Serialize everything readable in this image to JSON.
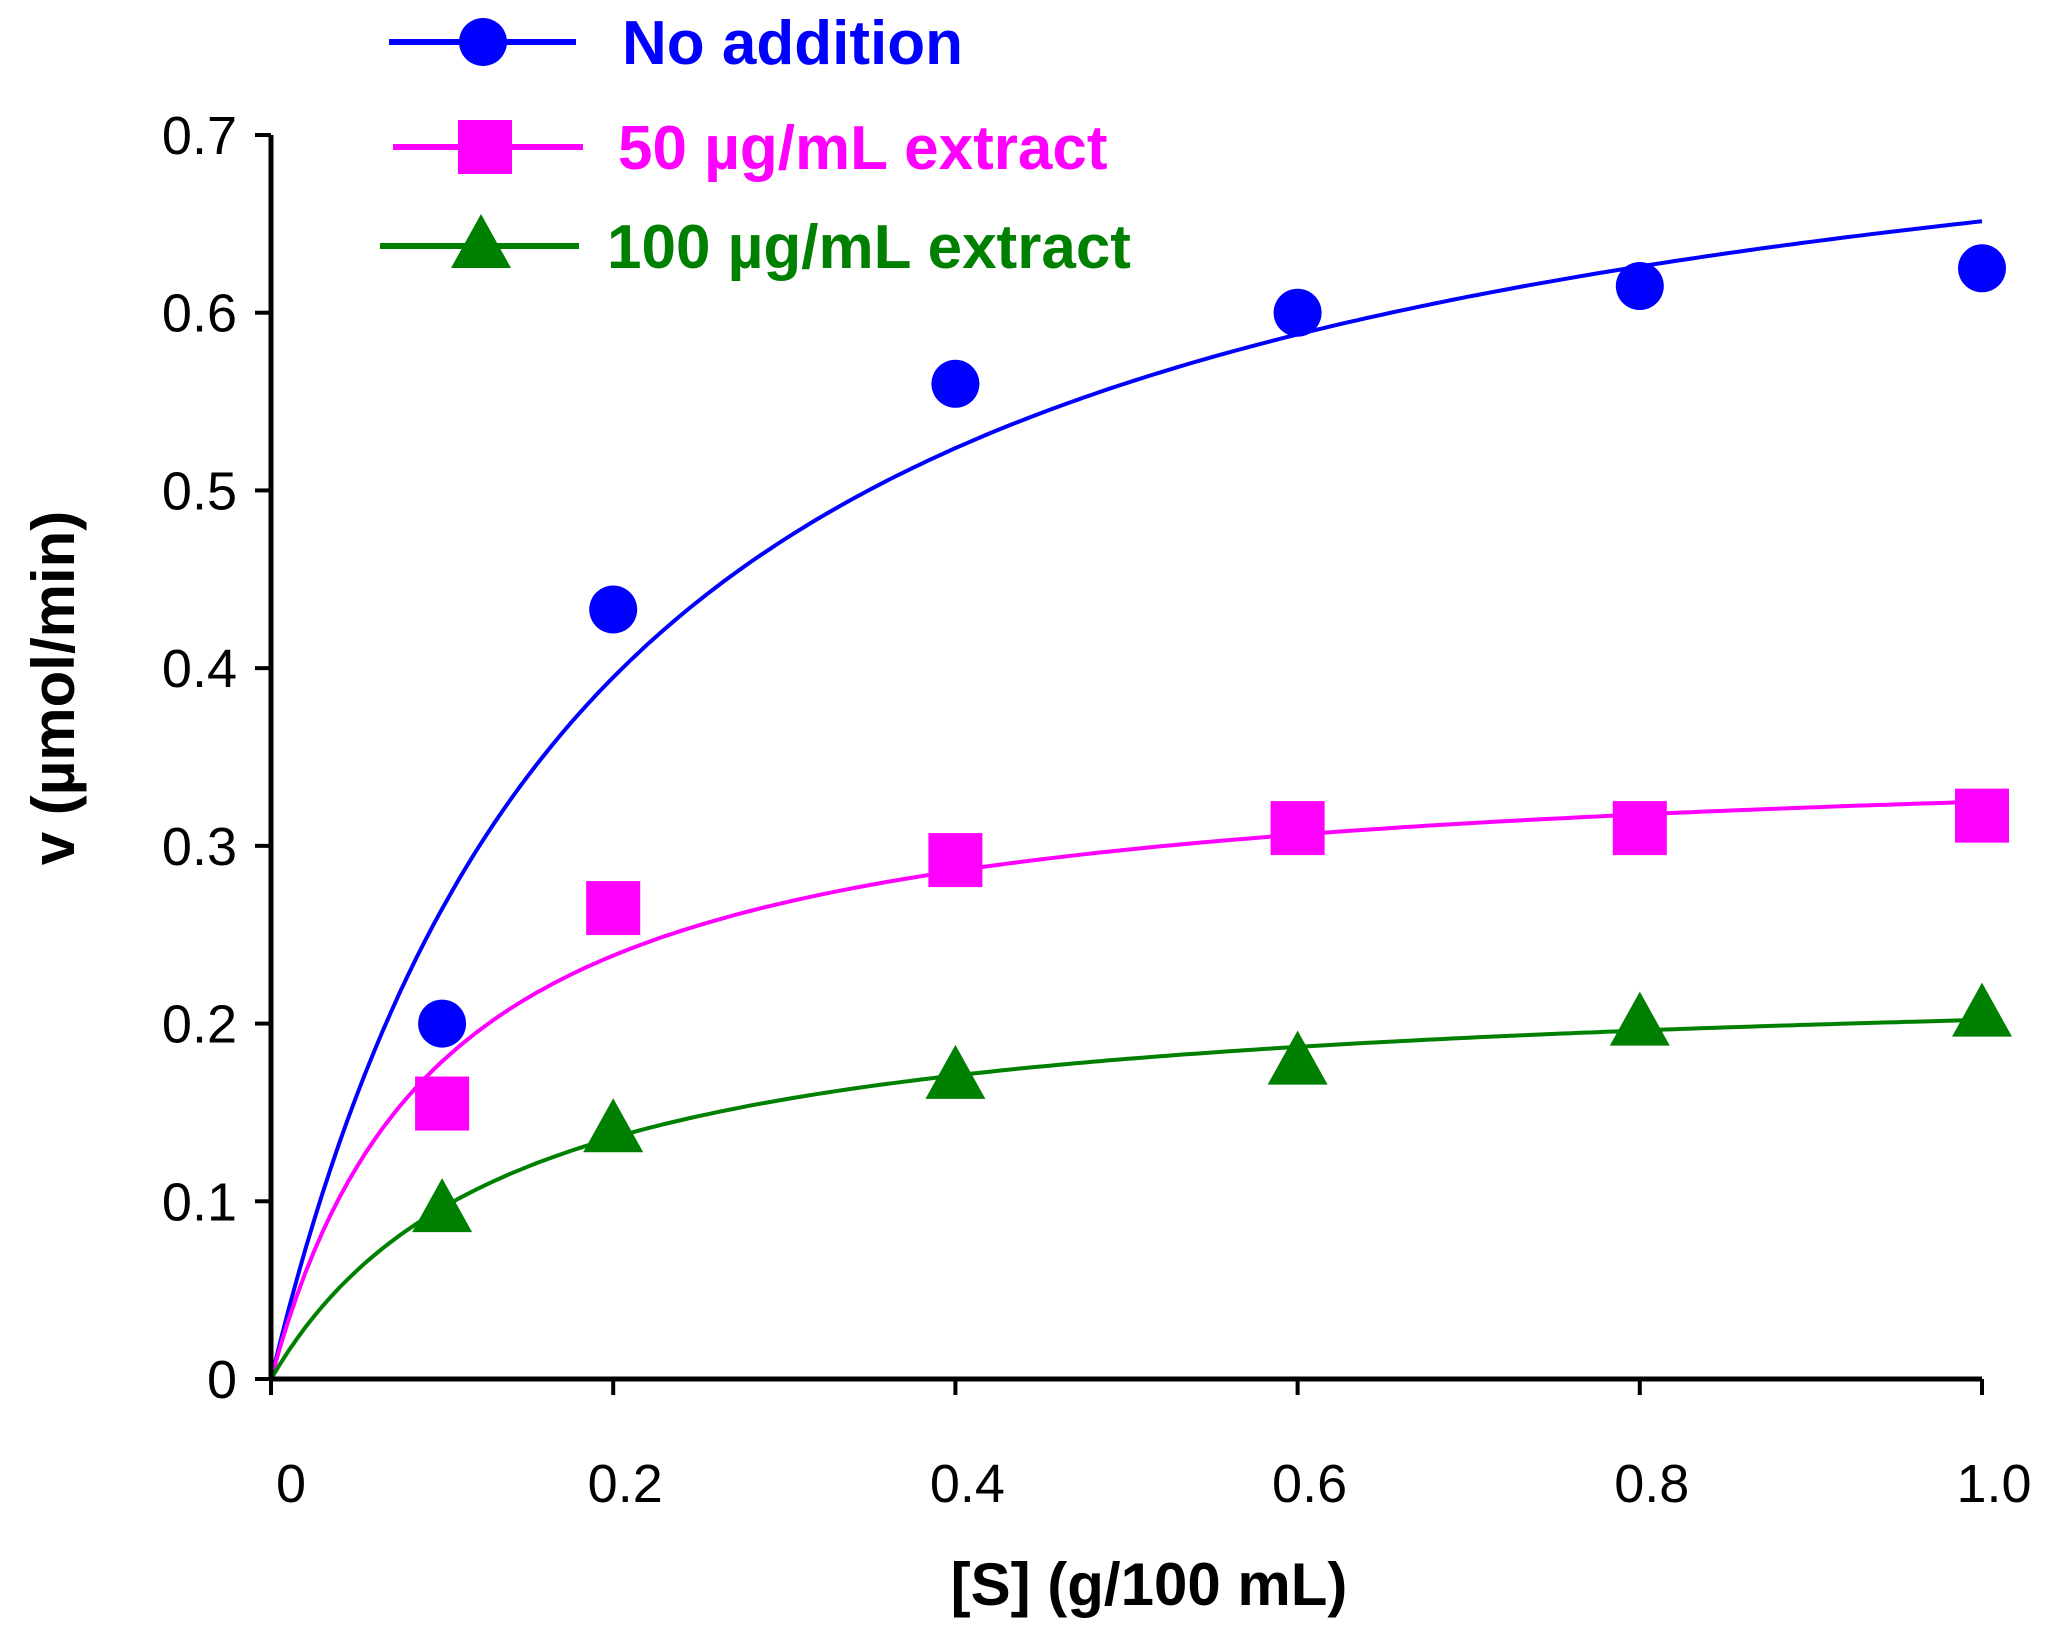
{
  "chart_data": {
    "type": "scatter",
    "title": "",
    "xlabel": "[S]  (g/100 mL)",
    "ylabel": "v (µmol/min)",
    "xlim": [
      0,
      1.0
    ],
    "ylim": [
      0,
      0.7
    ],
    "x_ticks": [
      "0",
      "0.2",
      "0.4",
      "0.6",
      "0.8",
      "1.0"
    ],
    "x_tick_values": [
      0,
      0.2,
      0.4,
      0.6,
      0.8,
      1.0
    ],
    "y_ticks": [
      "0",
      "0.1",
      "0.2",
      "0.3",
      "0.4",
      "0.5",
      "0.6",
      "0.7"
    ],
    "y_tick_values": [
      0,
      0.1,
      0.2,
      0.3,
      0.4,
      0.5,
      0.6,
      0.7
    ],
    "grid": false,
    "legend_placement": "top",
    "x": [
      0.1,
      0.2,
      0.4,
      0.6,
      0.8,
      1.0
    ],
    "series": [
      {
        "name": "No addition",
        "marker": "circle",
        "color": "#0000ff",
        "values": [
          0.2,
          0.433,
          0.56,
          0.6,
          0.615,
          0.625
        ],
        "fit_curve": "Michaelis-Menten"
      },
      {
        "name": "50 µg/mL extract",
        "marker": "square",
        "color": "#ff00ff",
        "values": [
          0.155,
          0.265,
          0.292,
          0.31,
          0.31,
          0.317
        ],
        "fit_curve": "Michaelis-Menten"
      },
      {
        "name": "100 µg/mL extract",
        "marker": "triangle",
        "color": "#008000",
        "values": [
          0.095,
          0.14,
          0.17,
          0.178,
          0.2,
          0.205
        ],
        "fit_curve": "Michaelis-Menten"
      }
    ]
  }
}
